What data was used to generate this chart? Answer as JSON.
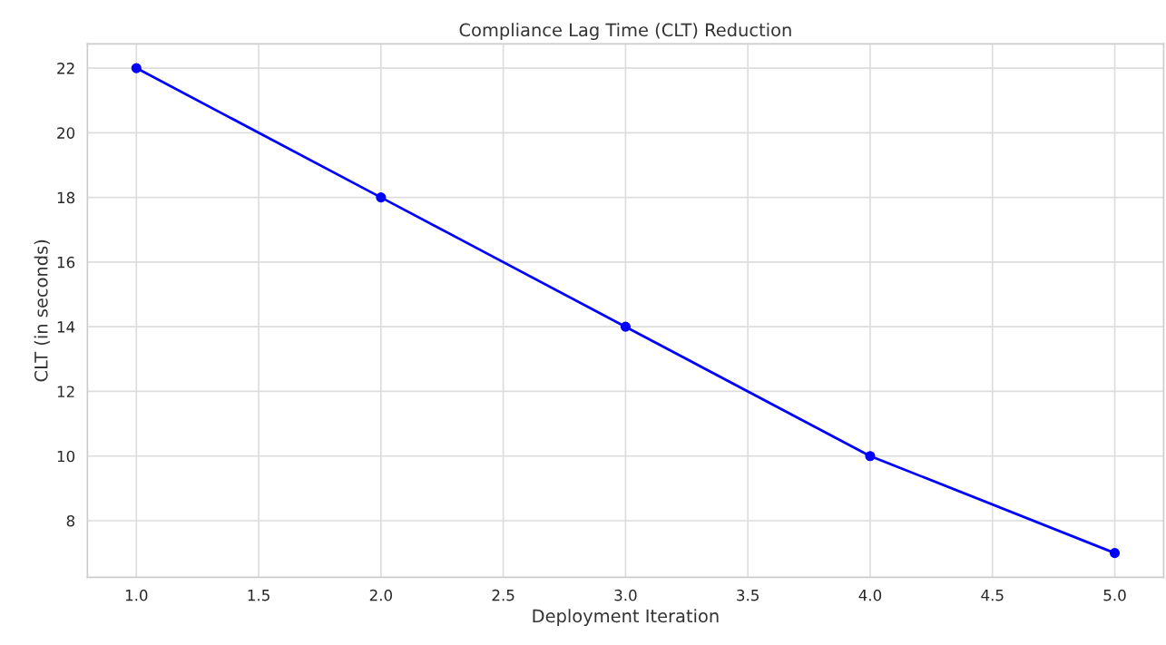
{
  "chart_data": {
    "type": "line",
    "title": "Compliance Lag Time (CLT) Reduction",
    "xlabel": "Deployment Iteration",
    "ylabel": "CLT (in seconds)",
    "x": [
      1,
      2,
      3,
      4,
      5
    ],
    "series": [
      {
        "color": "#0000ff",
        "values": [
          22,
          18,
          14,
          10,
          7
        ]
      }
    ],
    "xlim": [
      0.8,
      5.2
    ],
    "xticks": [
      {
        "value": 1,
        "label": "1.0"
      },
      {
        "value": 1.5,
        "label": "1.5"
      },
      {
        "value": 2,
        "label": "2.0"
      },
      {
        "value": 2.5,
        "label": "2.5"
      },
      {
        "value": 3,
        "label": "3.0"
      },
      {
        "value": 3.5,
        "label": "3.5"
      },
      {
        "value": 4,
        "label": "4.0"
      },
      {
        "value": 4.5,
        "label": "4.5"
      },
      {
        "value": 5,
        "label": "5.0"
      }
    ],
    "ylim": [
      6.25,
      22.75
    ],
    "yticks": [
      8,
      10,
      12,
      14,
      16,
      18,
      20,
      22
    ],
    "grid": true,
    "marker": "circle",
    "line_style": "solid"
  }
}
